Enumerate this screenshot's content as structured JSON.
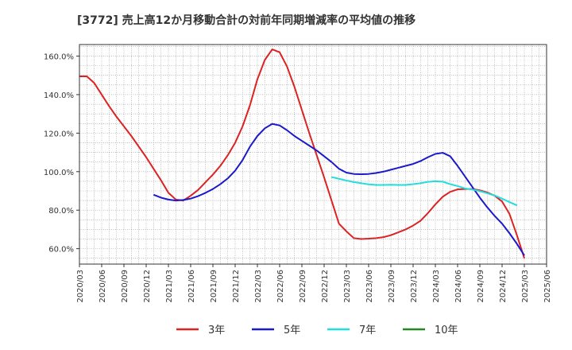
{
  "chart_data": {
    "type": "line",
    "title": "[3772]  売上高12か月移動合計の対前年同期増減率の平均値の推移",
    "xlabel": "",
    "ylabel": "",
    "ylim": [
      52,
      166
    ],
    "yticks": [
      60,
      80,
      100,
      120,
      140,
      160
    ],
    "ytick_labels": [
      "60.0%",
      "80.0%",
      "100.0%",
      "120.0%",
      "140.0%",
      "160.0%"
    ],
    "x_start": "2020-03",
    "x_end": "2025-06",
    "xtick_labels": [
      "2020/03",
      "2020/06",
      "2020/09",
      "2020/12",
      "2021/03",
      "2021/06",
      "2021/09",
      "2021/12",
      "2022/03",
      "2022/06",
      "2022/09",
      "2022/12",
      "2023/03",
      "2023/06",
      "2023/09",
      "2023/12",
      "2024/03",
      "2024/06",
      "2024/09",
      "2024/12",
      "2025/03",
      "2025/06"
    ],
    "grid": true,
    "legend_position": "bottom",
    "series": [
      {
        "name": "3年",
        "color": "#dd2222",
        "start": "2020-03",
        "values": [
          149.5,
          149.5,
          146,
          140,
          134,
          128.5,
          123.5,
          118.5,
          113,
          107.5,
          101.5,
          95.5,
          89,
          85.5,
          85,
          87.5,
          90.5,
          94.5,
          98.5,
          103,
          108.5,
          115,
          123.5,
          134.5,
          148,
          158,
          163.5,
          162,
          154.5,
          144,
          132,
          120,
          108.5,
          97,
          85,
          73,
          69,
          65.5,
          65,
          65.2,
          65.5,
          66,
          67,
          68.5,
          70,
          72,
          74.5,
          78.5,
          83,
          87,
          89.5,
          90.8,
          91,
          91,
          90.3,
          89.2,
          87.5,
          84.5,
          78,
          67,
          55
        ]
      },
      {
        "name": "5年",
        "color": "#1a1acc",
        "start": "2021-01",
        "values": [
          88,
          86.5,
          85.5,
          85,
          85.3,
          86,
          87.3,
          89,
          91,
          93.5,
          96.5,
          100.5,
          106,
          113,
          118.5,
          122.5,
          124.8,
          124,
          121.5,
          118.5,
          116,
          113.5,
          111,
          108,
          105,
          101.5,
          99.5,
          98.8,
          98.7,
          98.8,
          99.3,
          100,
          101,
          102,
          103,
          104,
          105.5,
          107.5,
          109.2,
          109.8,
          108,
          103,
          97.5,
          92,
          86.5,
          81.5,
          77,
          73,
          68,
          62.5,
          56.5
        ]
      },
      {
        "name": "7年",
        "color": "#22dddd",
        "start": "2023-01",
        "values": [
          97.2,
          96.3,
          95.4,
          94.6,
          94,
          93.4,
          93.1,
          93.1,
          93.2,
          93.1,
          93.1,
          93.5,
          94,
          94.7,
          95,
          94.8,
          93.5,
          92.5,
          91.3,
          90.7,
          89.9,
          88.8,
          87.6,
          86,
          84.2,
          82.5
        ]
      },
      {
        "name": "10年",
        "color": "#228822",
        "start": "2025-06",
        "values": []
      }
    ]
  }
}
